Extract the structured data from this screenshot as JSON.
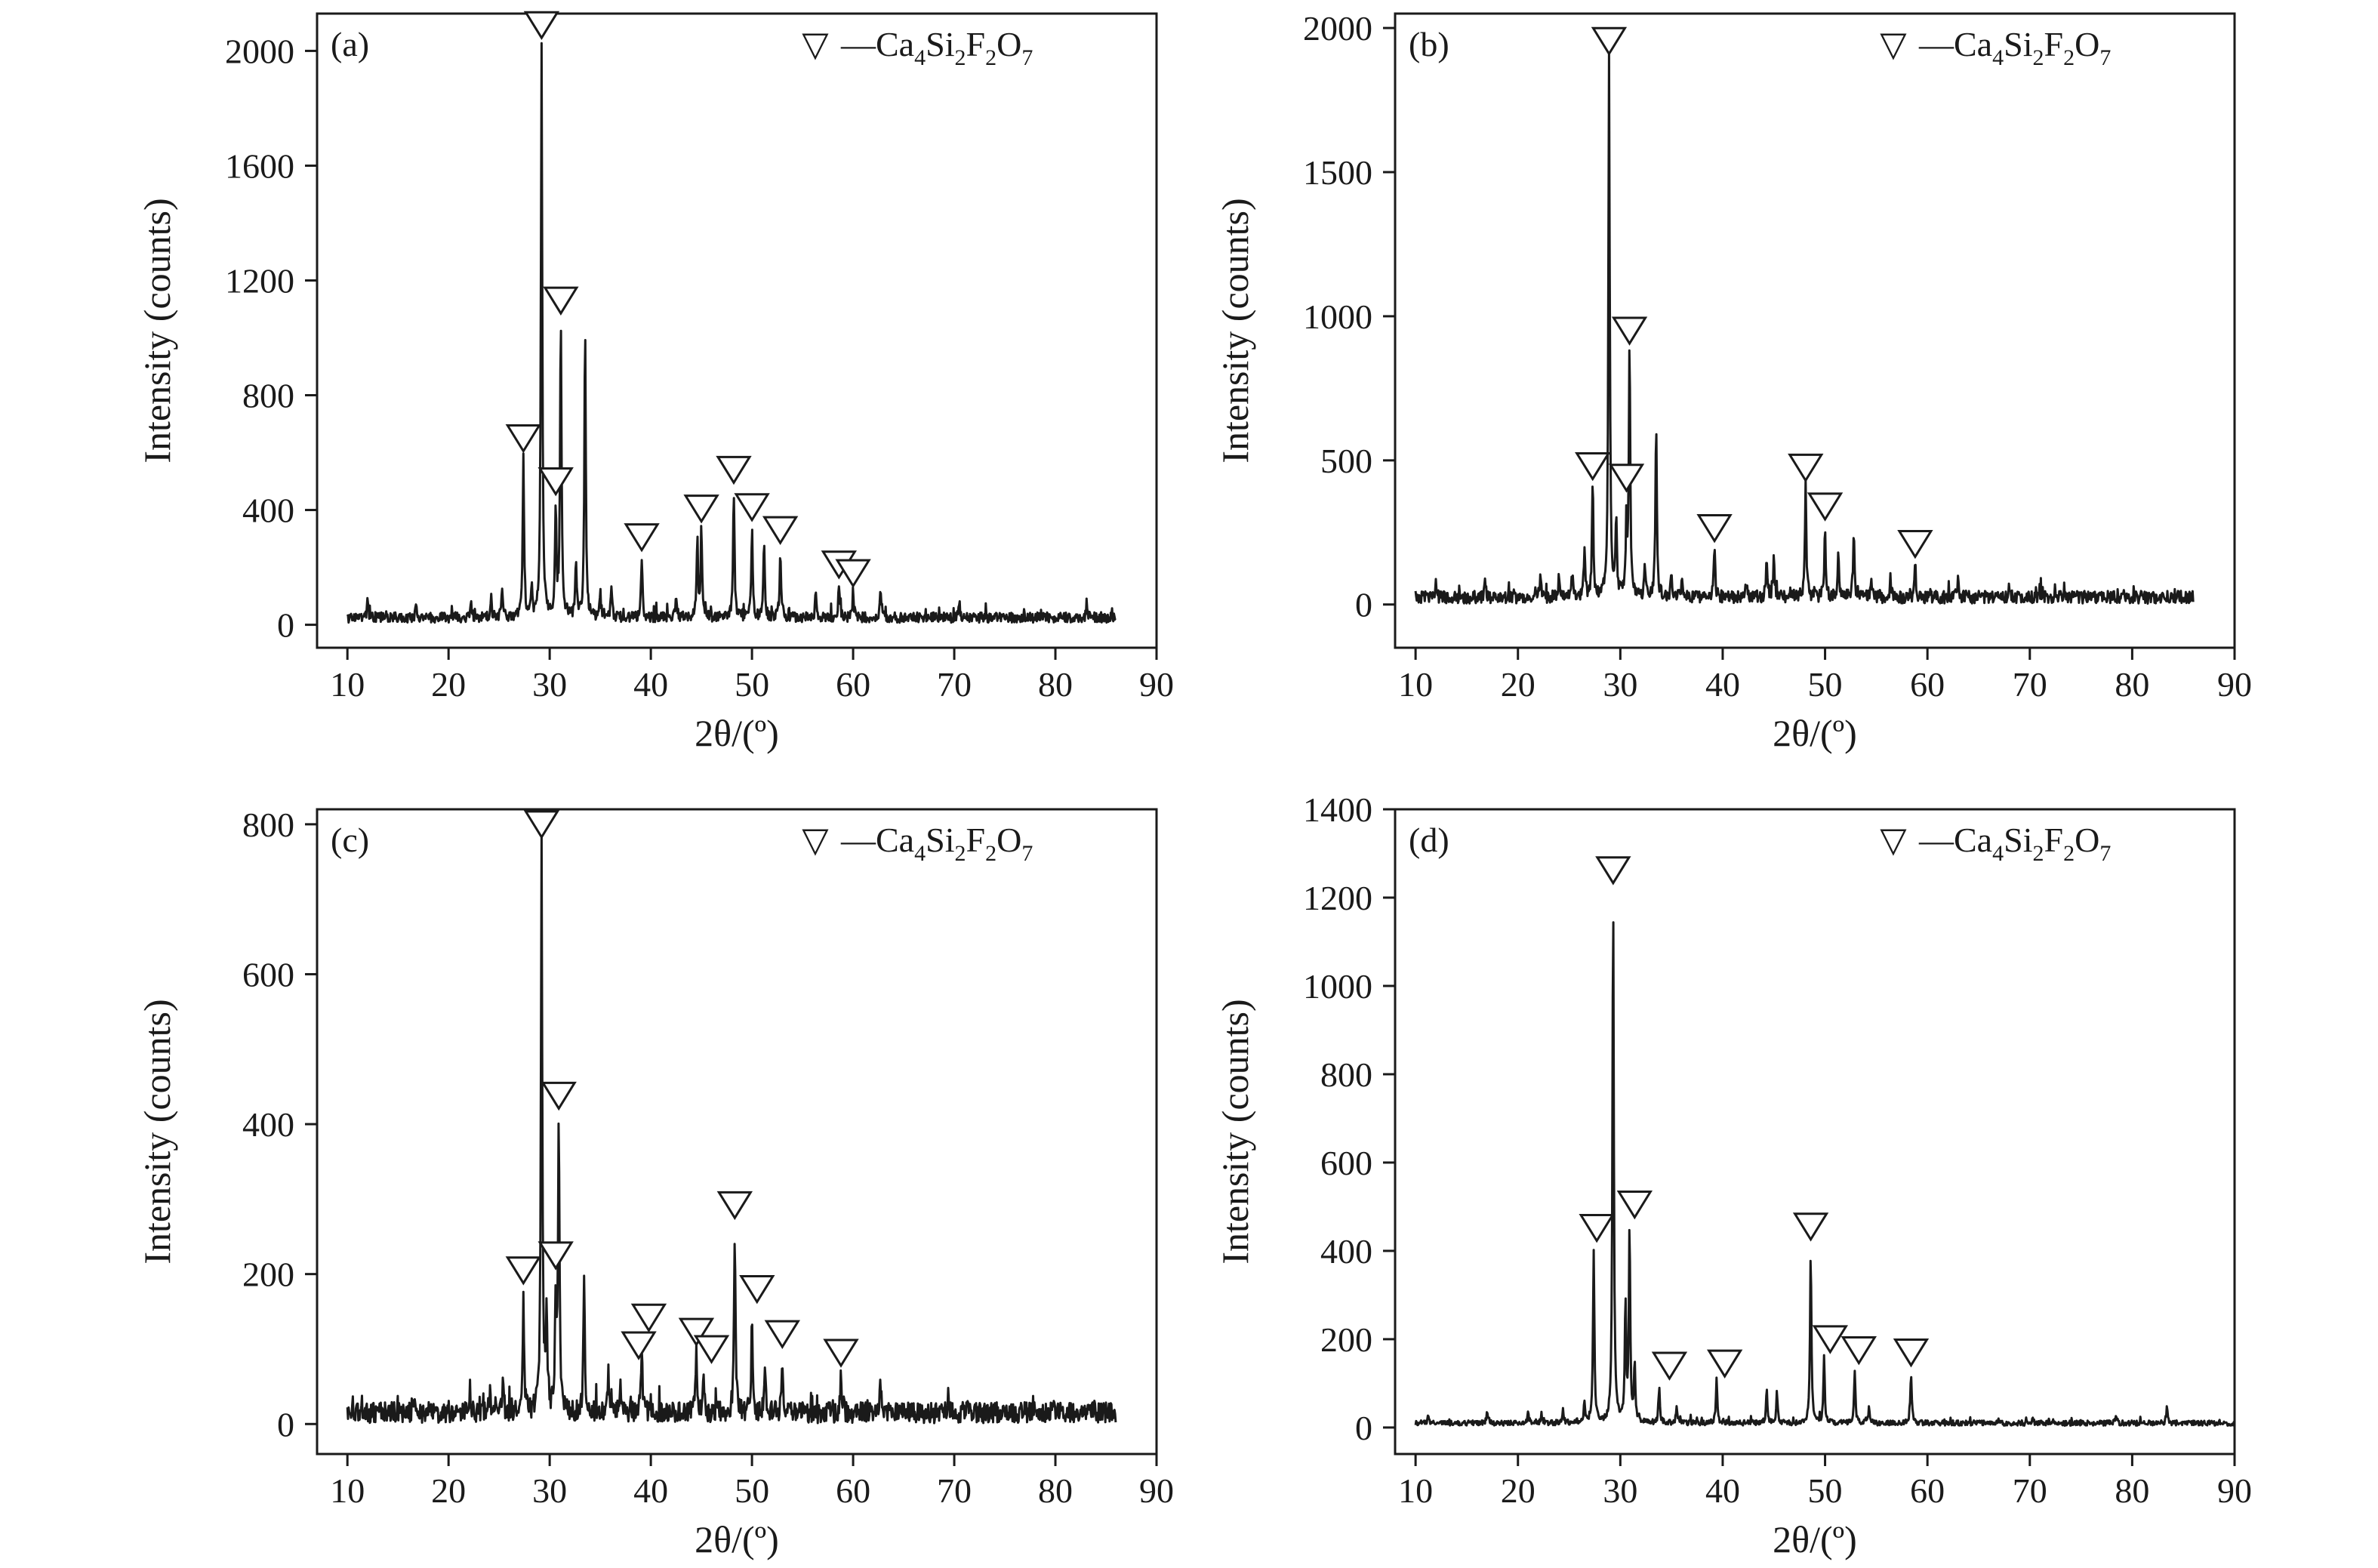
{
  "figure": {
    "background": "#ffffff",
    "line_color": "#1a1a1a"
  },
  "chart_data": [
    {
      "type": "line",
      "panel": "(a)",
      "xlabel": "2θ/(º)",
      "ylabel": "Intensity (counts)",
      "xlim": [
        7,
        90
      ],
      "ylim": [
        -80,
        2130
      ],
      "xticks": [
        10,
        20,
        30,
        40,
        50,
        60,
        70,
        80,
        90
      ],
      "yticks": [
        0,
        400,
        800,
        1200,
        1600,
        2000
      ],
      "legend": {
        "marker": "▽",
        "formula": [
          [
            "—Ca",
            ""
          ],
          [
            "4",
            "sub"
          ],
          [
            "Si",
            ""
          ],
          [
            "2",
            "sub"
          ],
          [
            "F",
            ""
          ],
          [
            "2",
            "sub"
          ],
          [
            "O",
            ""
          ],
          [
            "7",
            "sub"
          ]
        ]
      },
      "series": [
        {
          "x_range": [
            10,
            86
          ],
          "baseline": 25,
          "noise": 18,
          "peaks": [
            [
              12,
              90
            ],
            [
              16.8,
              70
            ],
            [
              22.2,
              90
            ],
            [
              24.2,
              100
            ],
            [
              25.3,
              120
            ],
            [
              27.4,
              590
            ],
            [
              28.2,
              130
            ],
            [
              29.2,
              2010
            ],
            [
              30.6,
              420
            ],
            [
              31.1,
              1060
            ],
            [
              32.6,
              220
            ],
            [
              33.5,
              1040
            ],
            [
              35.0,
              110
            ],
            [
              36.1,
              120
            ],
            [
              39.1,
              230
            ],
            [
              42.5,
              110
            ],
            [
              44.6,
              310
            ],
            [
              45.0,
              340
            ],
            [
              48.2,
              470
            ],
            [
              50.0,
              340
            ],
            [
              51.2,
              290
            ],
            [
              52.8,
              250
            ],
            [
              56.3,
              100
            ],
            [
              58.6,
              140
            ],
            [
              60.0,
              120
            ],
            [
              62.7,
              130
            ],
            [
              70.5,
              80
            ],
            [
              83.1,
              60
            ]
          ],
          "markers": [
            [
              27.4,
              650
            ],
            [
              29.2,
              2090
            ],
            [
              30.6,
              500
            ],
            [
              31.1,
              1130
            ],
            [
              39.1,
              305
            ],
            [
              45.0,
              405
            ],
            [
              48.2,
              540
            ],
            [
              50.0,
              410
            ],
            [
              52.8,
              330
            ],
            [
              58.6,
              210
            ],
            [
              60.0,
              180
            ]
          ]
        }
      ]
    },
    {
      "type": "line",
      "panel": "(b)",
      "xlabel": "2θ/(º)",
      "ylabel": "Intensity (counts)",
      "xlim": [
        8,
        90
      ],
      "ylim": [
        -150,
        2050
      ],
      "xticks": [
        10,
        20,
        30,
        40,
        50,
        60,
        70,
        80,
        90
      ],
      "yticks": [
        0,
        500,
        1000,
        1500,
        2000
      ],
      "legend": {
        "marker": "▽",
        "formula": [
          [
            "—Ca",
            ""
          ],
          [
            "4",
            "sub"
          ],
          [
            "Si",
            ""
          ],
          [
            "2",
            "sub"
          ],
          [
            "F",
            ""
          ],
          [
            "2",
            "sub"
          ],
          [
            "O",
            ""
          ],
          [
            "7",
            "sub"
          ]
        ]
      },
      "series": [
        {
          "x_range": [
            10,
            86
          ],
          "baseline": 25,
          "noise": 22,
          "peaks": [
            [
              12,
              70
            ],
            [
              16.8,
              80
            ],
            [
              22.2,
              110
            ],
            [
              24.0,
              90
            ],
            [
              25.3,
              110
            ],
            [
              26.5,
              200
            ],
            [
              27.3,
              420
            ],
            [
              28.9,
              1890
            ],
            [
              29.6,
              280
            ],
            [
              30.6,
              280
            ],
            [
              30.9,
              890
            ],
            [
              32.4,
              120
            ],
            [
              33.5,
              630
            ],
            [
              35.0,
              110
            ],
            [
              36.0,
              80
            ],
            [
              39.2,
              190
            ],
            [
              42.3,
              80
            ],
            [
              44.3,
              160
            ],
            [
              45.0,
              180
            ],
            [
              48.1,
              420
            ],
            [
              50.0,
              270
            ],
            [
              51.3,
              170
            ],
            [
              52.8,
              240
            ],
            [
              54.5,
              70
            ],
            [
              56.4,
              90
            ],
            [
              58.8,
              140
            ],
            [
              63.0,
              110
            ],
            [
              68.0,
              70
            ],
            [
              79.0,
              50
            ],
            [
              84.5,
              50
            ]
          ],
          "markers": [
            [
              27.3,
              480
            ],
            [
              28.9,
              1955
            ],
            [
              30.9,
              950
            ],
            [
              30.6,
              440
            ],
            [
              39.2,
              265
            ],
            [
              48.1,
              475
            ],
            [
              50.0,
              340
            ],
            [
              58.8,
              210
            ]
          ]
        }
      ]
    },
    {
      "type": "line",
      "panel": "(c)",
      "xlabel": "2θ/(º)",
      "ylabel": "Intensity (counts)",
      "xlim": [
        7,
        90
      ],
      "ylim": [
        -40,
        820
      ],
      "xticks": [
        10,
        20,
        30,
        40,
        50,
        60,
        70,
        80,
        90
      ],
      "yticks": [
        0,
        200,
        400,
        600,
        800
      ],
      "legend": {
        "marker": "▽",
        "formula": [
          [
            "—Ca",
            ""
          ],
          [
            "4",
            "sub"
          ],
          [
            "Si",
            ""
          ],
          [
            "2",
            "sub"
          ],
          [
            "F",
            ""
          ],
          [
            "2",
            "sub"
          ],
          [
            "O",
            ""
          ],
          [
            "7",
            "sub"
          ]
        ]
      },
      "series": [
        {
          "x_range": [
            10,
            86
          ],
          "baseline": 15,
          "noise": 14,
          "peaks": [
            [
              10.5,
              35
            ],
            [
              16.5,
              40
            ],
            [
              22.1,
              50
            ],
            [
              24.1,
              45
            ],
            [
              25.4,
              55
            ],
            [
              27.4,
              175
            ],
            [
              29.2,
              770
            ],
            [
              29.7,
              150
            ],
            [
              30.6,
              180
            ],
            [
              30.9,
              410
            ],
            [
              33.4,
              200
            ],
            [
              35.8,
              70
            ],
            [
              37.0,
              50
            ],
            [
              39.1,
              110
            ],
            [
              44.5,
              95
            ],
            [
              45.2,
              70
            ],
            [
              48.3,
              260
            ],
            [
              50.0,
              150
            ],
            [
              51.3,
              80
            ],
            [
              53.0,
              75
            ],
            [
              58.8,
              75
            ],
            [
              62.7,
              65
            ],
            [
              69.4,
              35
            ],
            [
              83.9,
              25
            ]
          ],
          "markers": [
            [
              27.4,
              205
            ],
            [
              29.2,
              800
            ],
            [
              30.6,
              225
            ],
            [
              30.9,
              438
            ],
            [
              38.8,
              105
            ],
            [
              39.8,
              142
            ],
            [
              44.5,
              123
            ],
            [
              46.0,
              100
            ],
            [
              48.3,
              292
            ],
            [
              50.5,
              180
            ],
            [
              53.0,
              120
            ],
            [
              58.8,
              95
            ]
          ]
        }
      ]
    },
    {
      "type": "line",
      "panel": "(d)",
      "xlabel": "2θ/(º)",
      "ylabel": "Intensity (counts)",
      "xlim": [
        8,
        90
      ],
      "ylim": [
        -60,
        1400
      ],
      "xticks": [
        10,
        20,
        30,
        40,
        50,
        60,
        70,
        80,
        90
      ],
      "yticks": [
        0,
        200,
        400,
        600,
        800,
        1000,
        1200,
        1400
      ],
      "legend": {
        "marker": "▽",
        "formula": [
          [
            "—Ca",
            ""
          ],
          [
            "4",
            "sub"
          ],
          [
            "Si",
            ""
          ],
          [
            "2",
            "sub"
          ],
          [
            "F",
            ""
          ],
          [
            "2",
            "sub"
          ],
          [
            "O",
            ""
          ],
          [
            "7",
            "sub"
          ]
        ]
      },
      "series": [
        {
          "x_range": [
            10,
            90
          ],
          "baseline": 10,
          "noise": 6,
          "peaks": [
            [
              11.2,
              25
            ],
            [
              17.0,
              40
            ],
            [
              21.0,
              35
            ],
            [
              22.3,
              30
            ],
            [
              24.4,
              45
            ],
            [
              26.5,
              60
            ],
            [
              27.4,
              400
            ],
            [
              29.3,
              1210
            ],
            [
              30.5,
              280
            ],
            [
              30.9,
              450
            ],
            [
              31.4,
              140
            ],
            [
              33.8,
              90
            ],
            [
              35.5,
              50
            ],
            [
              39.4,
              110
            ],
            [
              44.3,
              85
            ],
            [
              45.3,
              80
            ],
            [
              48.6,
              400
            ],
            [
              49.9,
              160
            ],
            [
              52.9,
              130
            ],
            [
              54.3,
              45
            ],
            [
              58.4,
              120
            ],
            [
              70.3,
              20
            ],
            [
              78.4,
              25
            ],
            [
              83.4,
              50
            ]
          ],
          "markers": [
            [
              27.7,
              452
            ],
            [
              29.3,
              1262
            ],
            [
              31.4,
              505
            ],
            [
              34.8,
              140
            ],
            [
              40.2,
              145
            ],
            [
              48.6,
              455
            ],
            [
              50.5,
              200
            ],
            [
              53.3,
              175
            ],
            [
              58.4,
              170
            ]
          ]
        }
      ]
    }
  ]
}
